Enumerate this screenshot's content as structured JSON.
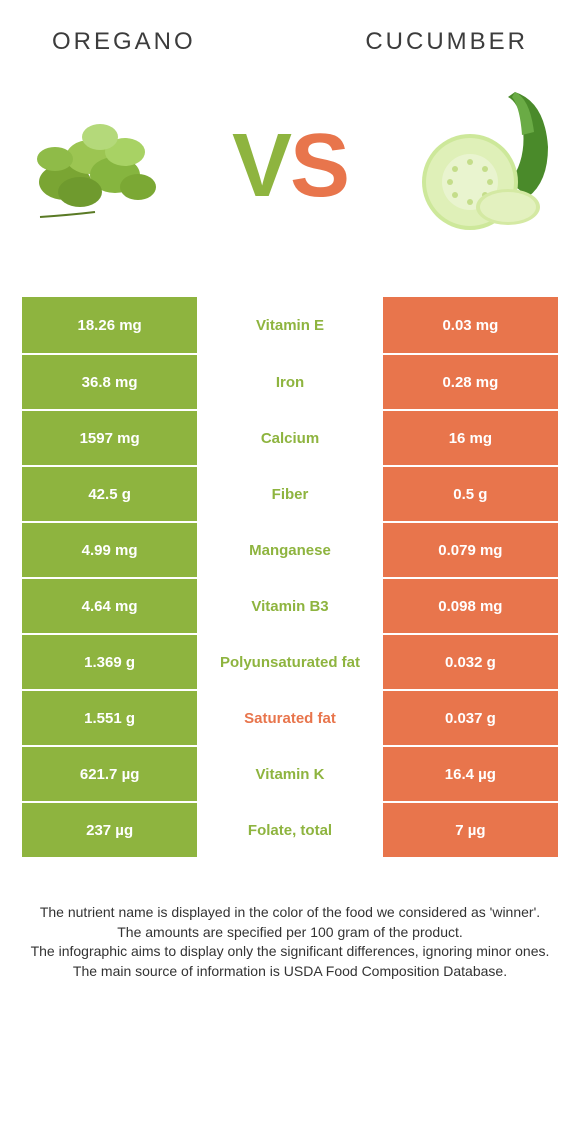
{
  "header": {
    "left": "OREGANO",
    "right": "CUCUMBER"
  },
  "vs": {
    "v": "V",
    "s": "S"
  },
  "colors": {
    "left_bg": "#8eb43f",
    "right_bg": "#e8754c",
    "left_text": "#8eb43f",
    "right_text": "#e8754c",
    "value_text": "#ffffff",
    "page_bg": "#ffffff"
  },
  "rows": [
    {
      "left": "18.26 mg",
      "label": "Vitamin E",
      "right": "0.03 mg",
      "winner": "left"
    },
    {
      "left": "36.8 mg",
      "label": "Iron",
      "right": "0.28 mg",
      "winner": "left"
    },
    {
      "left": "1597 mg",
      "label": "Calcium",
      "right": "16 mg",
      "winner": "left"
    },
    {
      "left": "42.5 g",
      "label": "Fiber",
      "right": "0.5 g",
      "winner": "left"
    },
    {
      "left": "4.99 mg",
      "label": "Manganese",
      "right": "0.079 mg",
      "winner": "left"
    },
    {
      "left": "4.64 mg",
      "label": "Vitamin B3",
      "right": "0.098 mg",
      "winner": "left"
    },
    {
      "left": "1.369 g",
      "label": "Polyunsaturated fat",
      "right": "0.032 g",
      "winner": "left"
    },
    {
      "left": "1.551 g",
      "label": "Saturated fat",
      "right": "0.037 g",
      "winner": "right"
    },
    {
      "left": "621.7 µg",
      "label": "Vitamin K",
      "right": "16.4 µg",
      "winner": "left"
    },
    {
      "left": "237 µg",
      "label": "Folate, total",
      "right": "7 µg",
      "winner": "left"
    }
  ],
  "footnotes": [
    "The nutrient name is displayed in the color of the food we considered as 'winner'.",
    "The amounts are specified per 100 gram of the product.",
    "The infographic aims to display only the significant differences, ignoring minor ones.",
    "The main source of information is USDA Food Composition Database."
  ]
}
